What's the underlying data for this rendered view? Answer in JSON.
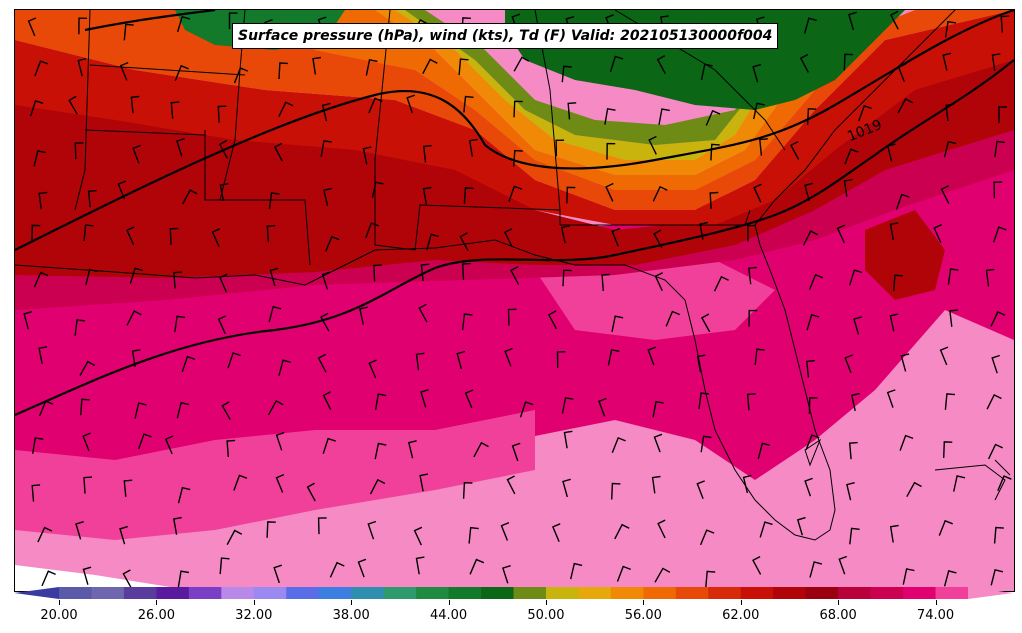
{
  "title": "Surface pressure (hPa), wind (kts), Td (F) Valid: 202105130000f004",
  "isobar_label": "1019",
  "colorbar": {
    "min": 18,
    "max": 76,
    "step": 2,
    "tick_labels": [
      "20.00",
      "26.00",
      "32.00",
      "38.00",
      "44.00",
      "50.00",
      "56.00",
      "62.00",
      "68.00",
      "74.00"
    ],
    "tick_values": [
      20,
      26,
      32,
      38,
      44,
      50,
      56,
      62,
      68,
      74
    ],
    "colors": [
      "#3a3ba0",
      "#5b5aa8",
      "#6e66ae",
      "#5a3c9f",
      "#5a1aa0",
      "#7a3fc4",
      "#b889e8",
      "#9b88f0",
      "#5a6de8",
      "#3d7fe0",
      "#2e8fb0",
      "#2e9a6e",
      "#1f8a42",
      "#127a2a",
      "#0b6616",
      "#6e8b16",
      "#c8b40c",
      "#e6a80a",
      "#f08a06",
      "#f06a04",
      "#e84808",
      "#d62a08",
      "#c81006",
      "#b00408",
      "#9a0010",
      "#b8003a",
      "#cc0050",
      "#e00070",
      "#f0409a",
      "#f58ac4"
    ]
  },
  "map_colors": {
    "pink_light": "#f58ac4",
    "pink_mid": "#f0409a",
    "magenta": "#e00070",
    "crimson": "#cc0050",
    "dark_red": "#b00408",
    "red": "#c81006",
    "red_orange": "#e84808",
    "orange": "#f06a04",
    "amber": "#f08a06",
    "yellow": "#c8b40c",
    "olive": "#6e8b16",
    "green": "#0b6616",
    "green_mid": "#127a2a"
  }
}
